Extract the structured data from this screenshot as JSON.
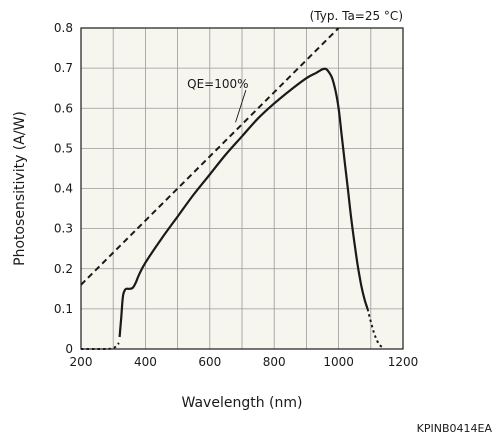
{
  "chart_data": {
    "type": "line",
    "title": "",
    "condition_note": "(Typ. Ta=25 °C)",
    "xlabel": "Wavelength (nm)",
    "ylabel": "Photosensitivity (A/W)",
    "xlim": [
      200,
      1200
    ],
    "ylim": [
      0,
      0.8
    ],
    "x_ticks": [
      200,
      400,
      600,
      800,
      1000,
      1200
    ],
    "y_ticks": [
      0,
      0.1,
      0.2,
      0.3,
      0.4,
      0.5,
      0.6,
      0.7,
      0.8
    ],
    "x_tick_labels": [
      "200",
      "400",
      "600",
      "800",
      "1000",
      "1200"
    ],
    "y_tick_labels": [
      "0",
      "0.1",
      "0.2",
      "0.3",
      "0.4",
      "0.5",
      "0.6",
      "0.7",
      "0.8"
    ],
    "grid": true,
    "plot_background": "#f6f5ee",
    "series": [
      {
        "style": "solid",
        "x": [
          320,
          325,
          330,
          335,
          340,
          345,
          350,
          360,
          370,
          380,
          400,
          450,
          500,
          550,
          600,
          650,
          700,
          750,
          800,
          850,
          900,
          930,
          950,
          960,
          970,
          980,
          990,
          1000,
          1010,
          1020,
          1030,
          1040,
          1050,
          1060,
          1070,
          1080,
          1090
        ],
        "y": [
          0.03,
          0.08,
          0.13,
          0.145,
          0.15,
          0.15,
          0.15,
          0.152,
          0.165,
          0.185,
          0.215,
          0.275,
          0.33,
          0.385,
          0.435,
          0.485,
          0.53,
          0.575,
          0.612,
          0.645,
          0.675,
          0.688,
          0.697,
          0.698,
          0.69,
          0.675,
          0.645,
          0.6,
          0.53,
          0.46,
          0.39,
          0.32,
          0.26,
          0.205,
          0.16,
          0.125,
          0.1
        ]
      },
      {
        "style": "dotted",
        "x": [
          1090,
          1100,
          1110,
          1120,
          1130,
          1140
        ],
        "y": [
          0.1,
          0.068,
          0.04,
          0.02,
          0.008,
          0.003
        ]
      },
      {
        "style": "dotted",
        "x": [
          200,
          240,
          280,
          300,
          310,
          318
        ],
        "y": [
          0.0,
          0.0,
          0.0,
          0.002,
          0.008,
          0.015
        ]
      },
      {
        "name": "QE=100%",
        "style": "dashed",
        "x": [
          200,
          1000
        ],
        "y": [
          0.16,
          0.8
        ]
      }
    ],
    "annotations": [
      {
        "text": "QE=100%",
        "x": 625,
        "y": 0.65,
        "pointer_to": [
          680,
          0.565
        ]
      }
    ],
    "figure_code": "KPINB0414EA"
  }
}
